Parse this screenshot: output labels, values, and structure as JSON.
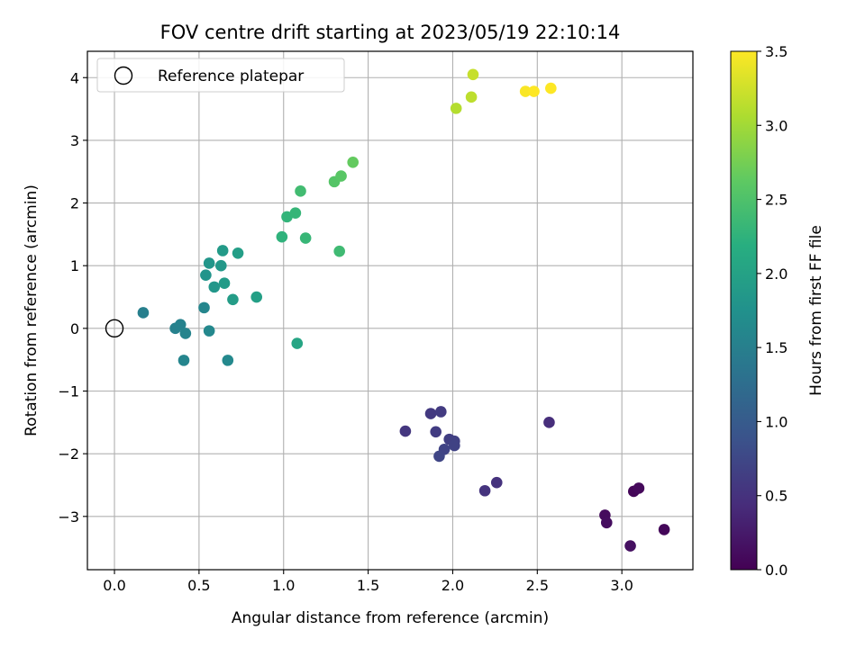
{
  "chart_data": {
    "type": "scatter",
    "title": "FOV centre drift starting at 2023/05/19 22:10:14",
    "xlabel": "Angular distance from reference (arcmin)",
    "ylabel": "Rotation from reference (arcmin)",
    "xlim": [
      -0.16,
      3.42
    ],
    "ylim": [
      -3.85,
      4.42
    ],
    "xticks": [
      0.0,
      0.5,
      1.0,
      1.5,
      2.0,
      2.5,
      3.0
    ],
    "xtick_labels": [
      "0.0",
      "0.5",
      "1.0",
      "1.5",
      "2.0",
      "2.5",
      "3.0"
    ],
    "yticks": [
      -3,
      -2,
      -1,
      0,
      1,
      2,
      3,
      4
    ],
    "ytick_labels": [
      "−3",
      "−2",
      "−1",
      "0",
      "1",
      "2",
      "3",
      "4"
    ],
    "grid": true,
    "legend": {
      "placement": "top-left",
      "label": "Reference platepar"
    },
    "reference_point": {
      "x": 0.0,
      "y": 0.0
    },
    "colorbar": {
      "label": "Hours from first FF file",
      "colormap": "viridis",
      "range": [
        0.0,
        3.5
      ],
      "ticks": [
        0.0,
        0.5,
        1.0,
        1.5,
        2.0,
        2.5,
        3.0,
        3.5
      ],
      "tick_labels": [
        "0.0",
        "0.5",
        "1.0",
        "1.5",
        "2.0",
        "2.5",
        "3.0",
        "3.5"
      ]
    },
    "points": [
      {
        "x": 3.07,
        "y": -2.6,
        "c": 0.05
      },
      {
        "x": 3.1,
        "y": -2.55,
        "c": 0.08
      },
      {
        "x": 2.9,
        "y": -2.98,
        "c": 0.1
      },
      {
        "x": 2.91,
        "y": -3.1,
        "c": 0.12
      },
      {
        "x": 3.25,
        "y": -3.21,
        "c": 0.06
      },
      {
        "x": 3.05,
        "y": -3.47,
        "c": 0.15
      },
      {
        "x": 2.57,
        "y": -1.5,
        "c": 0.45
      },
      {
        "x": 2.26,
        "y": -2.46,
        "c": 0.5
      },
      {
        "x": 2.19,
        "y": -2.59,
        "c": 0.52
      },
      {
        "x": 1.72,
        "y": -1.64,
        "c": 0.55
      },
      {
        "x": 1.87,
        "y": -1.36,
        "c": 0.58
      },
      {
        "x": 1.93,
        "y": -1.33,
        "c": 0.6
      },
      {
        "x": 1.9,
        "y": -1.65,
        "c": 0.62
      },
      {
        "x": 1.98,
        "y": -1.77,
        "c": 0.64
      },
      {
        "x": 2.01,
        "y": -1.8,
        "c": 0.66
      },
      {
        "x": 2.01,
        "y": -1.87,
        "c": 0.68
      },
      {
        "x": 1.95,
        "y": -1.93,
        "c": 0.7
      },
      {
        "x": 1.92,
        "y": -2.04,
        "c": 0.72
      },
      {
        "x": 0.17,
        "y": 0.25,
        "c": 1.5
      },
      {
        "x": 0.36,
        "y": 0.0,
        "c": 1.52
      },
      {
        "x": 0.39,
        "y": 0.06,
        "c": 1.54
      },
      {
        "x": 0.42,
        "y": -0.08,
        "c": 1.56
      },
      {
        "x": 0.41,
        "y": -0.51,
        "c": 1.58
      },
      {
        "x": 0.53,
        "y": 0.33,
        "c": 1.6
      },
      {
        "x": 0.56,
        "y": -0.04,
        "c": 1.62
      },
      {
        "x": 0.67,
        "y": -0.51,
        "c": 1.64
      },
      {
        "x": 0.54,
        "y": 0.85,
        "c": 1.8
      },
      {
        "x": 0.56,
        "y": 1.04,
        "c": 1.82
      },
      {
        "x": 0.59,
        "y": 0.66,
        "c": 1.84
      },
      {
        "x": 0.63,
        "y": 1.0,
        "c": 1.86
      },
      {
        "x": 0.64,
        "y": 1.24,
        "c": 1.88
      },
      {
        "x": 0.65,
        "y": 0.72,
        "c": 1.9
      },
      {
        "x": 0.7,
        "y": 0.46,
        "c": 1.92
      },
      {
        "x": 0.73,
        "y": 1.2,
        "c": 1.94
      },
      {
        "x": 0.84,
        "y": 0.5,
        "c": 1.96
      },
      {
        "x": 1.08,
        "y": -0.24,
        "c": 2.05
      },
      {
        "x": 0.99,
        "y": 1.46,
        "c": 2.25
      },
      {
        "x": 1.02,
        "y": 1.78,
        "c": 2.28
      },
      {
        "x": 1.07,
        "y": 1.84,
        "c": 2.3
      },
      {
        "x": 1.13,
        "y": 1.44,
        "c": 2.32
      },
      {
        "x": 1.1,
        "y": 2.19,
        "c": 2.4
      },
      {
        "x": 1.33,
        "y": 1.23,
        "c": 2.38
      },
      {
        "x": 1.3,
        "y": 2.34,
        "c": 2.55
      },
      {
        "x": 1.34,
        "y": 2.43,
        "c": 2.58
      },
      {
        "x": 1.41,
        "y": 2.65,
        "c": 2.65
      },
      {
        "x": 2.02,
        "y": 3.51,
        "c": 3.1
      },
      {
        "x": 2.11,
        "y": 3.69,
        "c": 3.15
      },
      {
        "x": 2.12,
        "y": 4.05,
        "c": 3.2
      },
      {
        "x": 2.43,
        "y": 3.78,
        "c": 3.48
      },
      {
        "x": 2.48,
        "y": 3.78,
        "c": 3.5
      },
      {
        "x": 2.58,
        "y": 3.83,
        "c": 3.52
      }
    ]
  }
}
